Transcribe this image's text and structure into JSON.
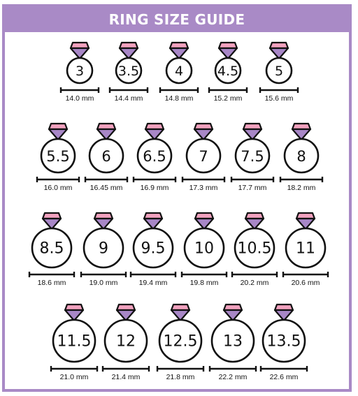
{
  "title": "RING SIZE GUIDE",
  "colors": {
    "frame": "#a98ac6",
    "gem_top": "#f2a2bf",
    "gem_bottom": "#a887c7",
    "outline": "#111111"
  },
  "rows": [
    [
      {
        "size": "3",
        "mm": "14.0 mm"
      },
      {
        "size": "3.5",
        "mm": "14.4 mm"
      },
      {
        "size": "4",
        "mm": "14.8 mm"
      },
      {
        "size": "4.5",
        "mm": "15.2 mm"
      },
      {
        "size": "5",
        "mm": "15.6 mm"
      }
    ],
    [
      {
        "size": "5.5",
        "mm": "16.0 mm"
      },
      {
        "size": "6",
        "mm": "16.45 mm"
      },
      {
        "size": "6.5",
        "mm": "16.9 mm"
      },
      {
        "size": "7",
        "mm": "17.3 mm"
      },
      {
        "size": "7.5",
        "mm": "17.7 mm"
      },
      {
        "size": "8",
        "mm": "18.2 mm"
      }
    ],
    [
      {
        "size": "8.5",
        "mm": "18.6 mm"
      },
      {
        "size": "9",
        "mm": "19.0 mm"
      },
      {
        "size": "9.5",
        "mm": "19.4 mm"
      },
      {
        "size": "10",
        "mm": "19.8 mm"
      },
      {
        "size": "10.5",
        "mm": "20.2 mm"
      },
      {
        "size": "11",
        "mm": "20.6 mm"
      }
    ],
    [
      {
        "size": "11.5",
        "mm": "21.0 mm"
      },
      {
        "size": "12",
        "mm": "21.4 mm"
      },
      {
        "size": "12.5",
        "mm": "21.8 mm"
      },
      {
        "size": "13",
        "mm": "22.2 mm"
      },
      {
        "size": "13.5",
        "mm": "22.6 mm"
      }
    ]
  ]
}
